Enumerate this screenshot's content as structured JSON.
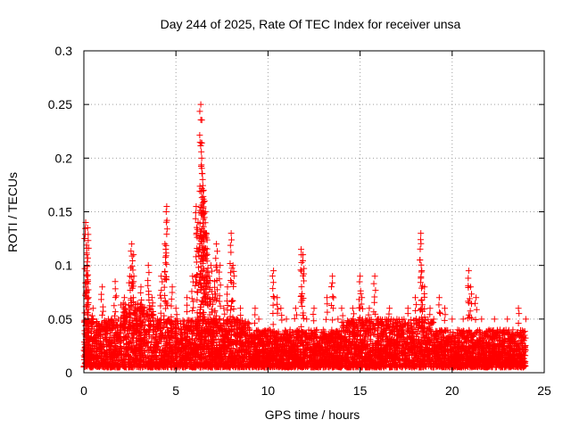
{
  "chart_data": {
    "type": "scatter",
    "title": "Day 244 of 2025, Rate Of TEC Index for receiver unsa",
    "xlabel": "GPS time / hours",
    "ylabel": "ROTI / TECUs",
    "xlim": [
      0,
      25
    ],
    "ylim": [
      0,
      0.3
    ],
    "x_ticks": [
      0,
      5,
      10,
      15,
      20,
      25
    ],
    "x_tick_labels": [
      "0",
      "5",
      "10",
      "15",
      "20",
      "25"
    ],
    "y_ticks": [
      0,
      0.05,
      0.1,
      0.15,
      0.2,
      0.25,
      0.3
    ],
    "y_tick_labels": [
      "0",
      "0.05",
      "0.1",
      "0.15",
      "0.2",
      "0.25",
      "0.3"
    ],
    "grid": true,
    "marker": "+",
    "color": "#ff0000",
    "series": [
      {
        "name": "ROTI",
        "x": [
          0.05,
          0.1,
          0.15,
          0.2,
          0.25,
          0.2,
          0.18,
          0.3,
          0.5,
          0.8,
          1.0,
          1.2,
          1.5,
          1.7,
          2.0,
          2.2,
          2.5,
          2.6,
          2.7,
          2.8,
          3.0,
          3.1,
          3.3,
          3.5,
          3.7,
          4.0,
          4.2,
          4.4,
          4.5,
          4.6,
          4.8,
          5.0,
          5.3,
          5.6,
          5.9,
          6.1,
          6.2,
          6.3,
          6.35,
          6.4,
          6.45,
          6.5,
          6.55,
          6.6,
          6.65,
          6.7,
          6.8,
          6.9,
          7.0,
          7.1,
          7.2,
          7.4,
          7.6,
          7.8,
          8.0,
          8.1,
          8.3,
          8.5,
          9.0,
          9.3,
          9.5,
          10.0,
          10.3,
          10.5,
          10.7,
          11.0,
          11.2,
          11.5,
          11.8,
          11.9,
          12.1,
          12.5,
          13.0,
          13.2,
          13.5,
          13.8,
          14.0,
          14.3,
          14.6,
          15.0,
          15.1,
          15.3,
          15.5,
          15.8,
          16.0,
          16.3,
          16.6,
          17.0,
          17.3,
          17.6,
          18.0,
          18.3,
          18.35,
          18.5,
          18.8,
          19.0,
          19.3,
          19.6,
          20.0,
          20.3,
          20.6,
          20.9,
          21.0,
          21.3,
          21.6,
          22.0,
          22.3,
          22.6,
          23.0,
          23.3,
          23.6,
          23.9,
          24.0
        ],
        "y": [
          0.02,
          0.14,
          0.11,
          0.135,
          0.07,
          0.05,
          0.09,
          0.03,
          0.06,
          0.04,
          0.08,
          0.03,
          0.05,
          0.085,
          0.04,
          0.07,
          0.09,
          0.12,
          0.11,
          0.06,
          0.05,
          0.08,
          0.04,
          0.1,
          0.07,
          0.05,
          0.09,
          0.12,
          0.155,
          0.05,
          0.08,
          0.06,
          0.04,
          0.07,
          0.09,
          0.155,
          0.14,
          0.12,
          0.25,
          0.2,
          0.18,
          0.17,
          0.16,
          0.15,
          0.13,
          0.11,
          0.09,
          0.1,
          0.07,
          0.085,
          0.12,
          0.1,
          0.06,
          0.08,
          0.13,
          0.1,
          0.05,
          0.06,
          0.04,
          0.06,
          0.05,
          0.03,
          0.095,
          0.07,
          0.06,
          0.05,
          0.04,
          0.06,
          0.115,
          0.11,
          0.05,
          0.06,
          0.04,
          0.07,
          0.09,
          0.05,
          0.06,
          0.04,
          0.06,
          0.09,
          0.07,
          0.05,
          0.06,
          0.09,
          0.05,
          0.04,
          0.06,
          0.05,
          0.04,
          0.06,
          0.07,
          0.13,
          0.095,
          0.08,
          0.06,
          0.05,
          0.07,
          0.06,
          0.05,
          0.04,
          0.05,
          0.095,
          0.08,
          0.07,
          0.05,
          0.04,
          0.05,
          0.04,
          0.05,
          0.04,
          0.06,
          0.03,
          0.05
        ]
      }
    ],
    "density_bands": [
      {
        "from": 0,
        "to": 2,
        "base": 0.005,
        "top": 0.05
      },
      {
        "from": 2,
        "to": 3.8,
        "base": 0.005,
        "top": 0.065
      },
      {
        "from": 3.8,
        "to": 9,
        "base": 0.005,
        "top": 0.05
      },
      {
        "from": 9,
        "to": 14,
        "base": 0.005,
        "top": 0.04
      },
      {
        "from": 14,
        "to": 19,
        "base": 0.005,
        "top": 0.05
      },
      {
        "from": 19,
        "to": 24,
        "base": 0.005,
        "top": 0.04
      }
    ]
  }
}
